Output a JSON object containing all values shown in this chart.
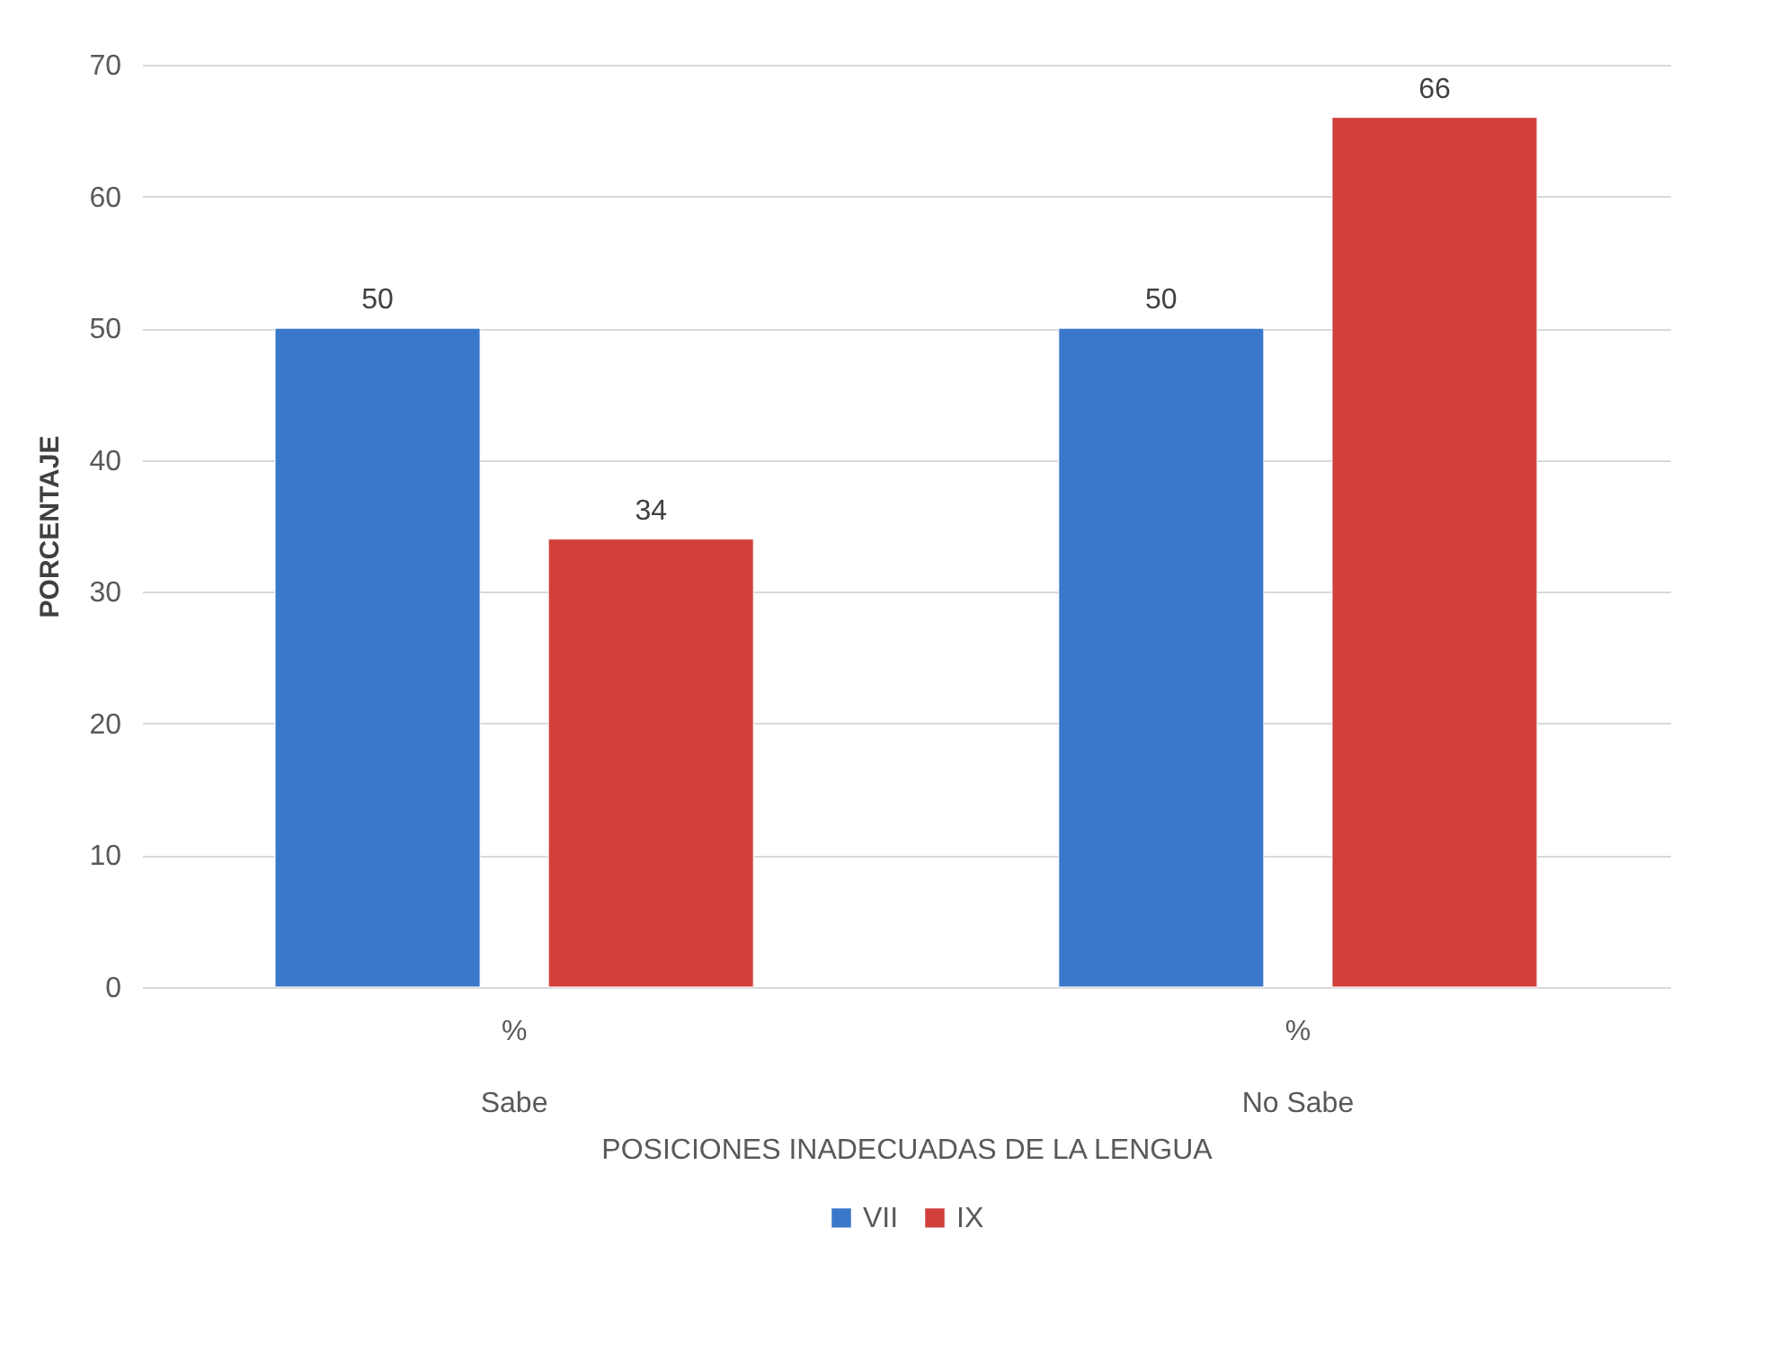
{
  "chart_data": {
    "type": "bar",
    "categories": [
      "%\nSabe",
      "%\nNo Sabe"
    ],
    "xlabel": "POSICIONES INADECUADAS DE LA LENGUA",
    "ylabel": "PORCENTAJE",
    "series": [
      {
        "name": "VII",
        "color": "#3a78c9",
        "values": [
          50,
          50
        ]
      },
      {
        "name": "IX",
        "color": "#d1403c",
        "values": [
          34,
          66
        ]
      }
    ],
    "ylim": [
      0,
      70
    ],
    "yticks": [
      0,
      10,
      20,
      30,
      40,
      50,
      60,
      70
    ],
    "grid": "y",
    "legend": "bottom",
    "data_labels": true
  }
}
